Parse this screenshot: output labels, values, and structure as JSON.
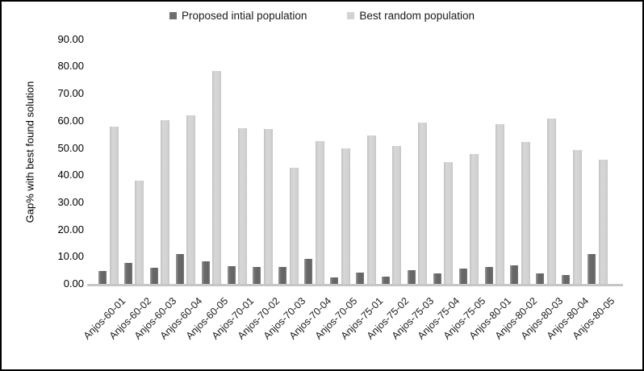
{
  "chart_data": {
    "type": "bar",
    "title": "",
    "xlabel": "",
    "ylabel": "Gap% with best found solution",
    "ylim": [
      0,
      90
    ],
    "ytick_step": 10,
    "yticks": [
      "0.00",
      "10.00",
      "20.00",
      "30.00",
      "40.00",
      "50.00",
      "60.00",
      "70.00",
      "80.00",
      "90.00"
    ],
    "grid": false,
    "legend_position": "top-center",
    "categories": [
      "Anjos-60-01",
      "Anjos-60-02",
      "Anjos-60-03",
      "Anjos-60-04",
      "Anjos-60-05",
      "Anjos-70-01",
      "Anjos-70-02",
      "Anjos-70-03",
      "Anjos-70-04",
      "Anjos-70-05",
      "Anjos-75-01",
      "Anjos-75-02",
      "Anjos-75-03",
      "Anjos-75-04",
      "Anjos-75-05",
      "Anjos-80-01",
      "Anjos-80-02",
      "Anjos-80-03",
      "Anjos-80-04",
      "Anjos-80-05"
    ],
    "series": [
      {
        "name": "Proposed intial population",
        "color": "#6e6e6e",
        "values": [
          4.8,
          7.8,
          6.0,
          11.1,
          8.3,
          6.4,
          6.1,
          6.3,
          9.2,
          2.3,
          4.1,
          2.8,
          5.0,
          3.8,
          5.6,
          6.3,
          6.8,
          4.0,
          3.3,
          11.1
        ]
      },
      {
        "name": "Best random population",
        "color": "#d2d2d2",
        "values": [
          58.0,
          37.9,
          60.1,
          61.9,
          78.2,
          57.2,
          56.9,
          42.6,
          52.4,
          49.8,
          54.5,
          50.8,
          59.4,
          44.8,
          47.7,
          58.9,
          52.1,
          60.7,
          49.4,
          45.7
        ]
      }
    ]
  },
  "colors": {
    "background": "#ffffff",
    "border": "#000000",
    "axis_line": "#c6c6c6",
    "text": "#000000"
  }
}
